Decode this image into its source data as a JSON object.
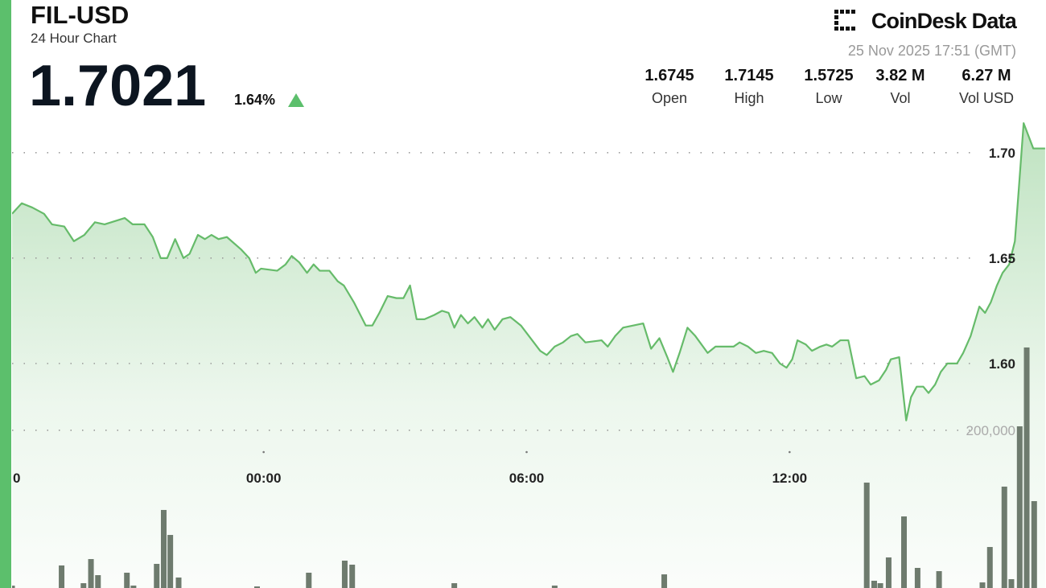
{
  "header": {
    "symbol": "FIL-USD",
    "subtitle": "24 Hour Chart",
    "price": 1.7021,
    "change": "1.64%",
    "brand": "CoinDesk Data",
    "timestamp": "25 Nov 2025 17:51 (GMT)",
    "stats": [
      {
        "value": 1.6745,
        "label": "Open"
      },
      {
        "value": 1.7145,
        "label": "High"
      },
      {
        "value": 1.5725,
        "label": "Low"
      },
      {
        "value": "3.82 M",
        "label": "Vol"
      },
      {
        "value": "6.27 M",
        "label": "Vol USD"
      }
    ]
  },
  "chart_data": [
    {
      "type": "line",
      "color": "#66bb6a",
      "x": [
        -5.74,
        -5.52,
        -5.28,
        -5.01,
        -4.83,
        -4.55,
        -4.33,
        -4.09,
        -3.85,
        -3.63,
        -3.17,
        -2.99,
        -2.72,
        -2.53,
        -2.35,
        -2.2,
        -2.02,
        -1.83,
        -1.69,
        -1.5,
        -1.34,
        -1.19,
        -1.03,
        -0.84,
        -0.51,
        -0.33,
        -0.18,
        -0.06,
        0.31,
        0.5,
        0.64,
        0.81,
        0.99,
        1.14,
        1.28,
        1.5,
        1.69,
        1.83,
        2.06,
        2.33,
        2.48,
        2.64,
        2.83,
        3.03,
        3.19,
        3.34,
        3.49,
        3.67,
        3.89,
        4.07,
        4.22,
        4.35,
        4.5,
        4.66,
        4.81,
        4.99,
        5.12,
        5.27,
        5.45,
        5.63,
        5.87,
        6.09,
        6.31,
        6.46,
        6.64,
        6.83,
        7.01,
        7.16,
        7.34,
        7.71,
        7.85,
        8.02,
        8.2,
        8.66,
        8.84,
        9.03,
        9.21,
        9.34,
        9.49,
        9.67,
        9.85,
        10.13,
        10.31,
        10.72,
        10.86,
        11.05,
        11.23,
        11.41,
        11.6,
        11.78,
        11.93,
        12.06,
        12.18,
        12.37,
        12.51,
        12.7,
        12.84,
        12.97,
        13.16,
        13.34,
        13.52,
        13.71,
        13.85,
        14.04,
        14.2,
        14.31,
        14.5,
        14.66,
        14.77,
        14.9,
        15.05,
        15.17,
        15.32,
        15.45,
        15.6,
        15.82,
        15.96,
        16.13,
        16.33,
        16.46,
        16.59,
        16.73,
        16.86,
        17.01,
        17.14,
        17.23,
        17.34,
        17.56,
        17.83
      ],
      "values": [
        1.671,
        1.676,
        1.674,
        1.671,
        1.666,
        1.665,
        1.658,
        1.661,
        1.667,
        1.666,
        1.669,
        1.666,
        1.666,
        1.66,
        1.65,
        1.65,
        1.659,
        1.65,
        1.652,
        1.661,
        1.659,
        1.661,
        1.659,
        1.66,
        1.654,
        1.65,
        1.643,
        1.645,
        1.644,
        1.647,
        1.651,
        1.648,
        1.643,
        1.647,
        1.644,
        1.644,
        1.639,
        1.637,
        1.629,
        1.618,
        1.618,
        1.624,
        1.632,
        1.631,
        1.631,
        1.637,
        1.621,
        1.621,
        1.623,
        1.625,
        1.624,
        1.617,
        1.623,
        1.619,
        1.622,
        1.617,
        1.621,
        1.616,
        1.621,
        1.622,
        1.618,
        1.612,
        1.606,
        1.604,
        1.608,
        1.61,
        1.613,
        1.614,
        1.61,
        1.611,
        1.608,
        1.613,
        1.617,
        1.619,
        1.607,
        1.612,
        1.603,
        1.596,
        1.605,
        1.617,
        1.613,
        1.605,
        1.608,
        1.608,
        1.61,
        1.608,
        1.605,
        1.606,
        1.605,
        1.6,
        1.598,
        1.602,
        1.611,
        1.609,
        1.606,
        1.608,
        1.609,
        1.608,
        1.611,
        1.611,
        1.593,
        1.594,
        1.59,
        1.592,
        1.597,
        1.602,
        1.603,
        1.573,
        1.584,
        1.589,
        1.589,
        1.586,
        1.59,
        1.596,
        1.6,
        1.6,
        1.605,
        1.613,
        1.627,
        1.624,
        1.629,
        1.637,
        1.643,
        1.647,
        1.658,
        1.683,
        1.714,
        1.702,
        1.702
      ],
      "xlim": [
        -5.74,
        17.85
      ],
      "xticks": [
        {
          "value": -6,
          "label": "0"
        },
        {
          "value": 0,
          "label": "00:00"
        },
        {
          "value": 6,
          "label": "06:00"
        },
        {
          "value": 12,
          "label": "12:00"
        }
      ],
      "ylim": [
        1.4935,
        1.719
      ],
      "yticks": [
        {
          "value": 1.6,
          "label": "1.60"
        },
        1.65,
        {
          "value": 1.7,
          "label": "1.70"
        }
      ],
      "grid": true
    },
    {
      "type": "bar",
      "color": "#6e7b6e",
      "x": [
        -5.74,
        -4.61,
        -4.11,
        -3.94,
        -3.78,
        -3.12,
        -2.97,
        -2.44,
        -2.28,
        -2.13,
        -1.94,
        -0.15,
        1.03,
        1.85,
        2.02,
        4.35,
        6.64,
        9.14,
        13.76,
        13.93,
        14.07,
        14.26,
        14.61,
        14.92,
        15.41,
        16.4,
        16.57,
        16.9,
        17.06,
        17.25,
        17.41,
        17.58
      ],
      "values": [
        3000,
        28600,
        6100,
        36700,
        16300,
        19400,
        3100,
        30600,
        99000,
        67300,
        13300,
        2000,
        19400,
        34700,
        29600,
        6100,
        3100,
        17300,
        133700,
        9200,
        6100,
        38800,
        90800,
        25500,
        21400,
        7100,
        52000,
        128600,
        11200,
        205100,
        305100,
        110200
      ],
      "xlim": [
        -5.74,
        17.85
      ],
      "ylim": [
        0,
        603000
      ],
      "yticks": [
        {
          "value": 200000,
          "label": "200,000"
        }
      ],
      "grid": true
    }
  ]
}
